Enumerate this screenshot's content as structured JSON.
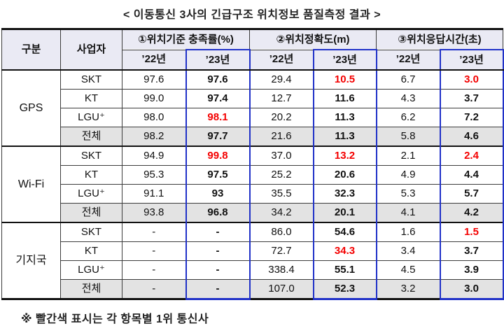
{
  "title": "< 이동통신 3사의 긴급구조 위치정보 품질측정 결과 >",
  "footnote": "※ 빨간색 표시는 각 항목별 1위 통신사",
  "colors": {
    "rank1_red": "#f40000",
    "year23_border_blue": "#2031c8",
    "header_bg": "#eaeaf4",
    "total_row_bg": "#e3e3e3"
  },
  "table": {
    "col_headers": {
      "category": "구분",
      "carrier": "사업자",
      "groups": [
        "①위치기준 충족률(%)",
        "②위치정확도(m)",
        "③위치응답시간(초)"
      ],
      "years": [
        "’22년",
        "’23년"
      ]
    },
    "groups": [
      {
        "name": "GPS",
        "rows": [
          {
            "carrier": "SKT",
            "total": false,
            "values": [
              "97.6",
              "97.6",
              "29.4",
              "10.5",
              "6.7",
              "3.0"
            ],
            "red": [
              3,
              5
            ]
          },
          {
            "carrier": "KT",
            "total": false,
            "values": [
              "99.0",
              "97.4",
              "12.7",
              "11.6",
              "4.3",
              "3.7"
            ],
            "red": []
          },
          {
            "carrier": "LGU⁺",
            "total": false,
            "values": [
              "98.0",
              "98.1",
              "20.2",
              "11.3",
              "6.2",
              "7.2"
            ],
            "red": [
              1
            ]
          },
          {
            "carrier": "전체",
            "total": true,
            "values": [
              "98.2",
              "97.7",
              "21.6",
              "11.3",
              "5.8",
              "4.6"
            ],
            "red": []
          }
        ]
      },
      {
        "name": "Wi-Fi",
        "rows": [
          {
            "carrier": "SKT",
            "total": false,
            "values": [
              "94.9",
              "99.8",
              "37.0",
              "13.2",
              "2.1",
              "2.4"
            ],
            "red": [
              1,
              3,
              5
            ]
          },
          {
            "carrier": "KT",
            "total": false,
            "values": [
              "95.3",
              "97.5",
              "25.2",
              "20.6",
              "4.9",
              "4.4"
            ],
            "red": []
          },
          {
            "carrier": "LGU⁺",
            "total": false,
            "values": [
              "91.1",
              "93",
              "35.5",
              "32.3",
              "5.3",
              "5.7"
            ],
            "red": []
          },
          {
            "carrier": "전체",
            "total": true,
            "values": [
              "93.8",
              "96.8",
              "34.2",
              "20.1",
              "4.1",
              "4.2"
            ],
            "red": []
          }
        ]
      },
      {
        "name": "기지국",
        "rows": [
          {
            "carrier": "SKT",
            "total": false,
            "values": [
              "-",
              "-",
              "86.0",
              "54.6",
              "1.6",
              "1.5"
            ],
            "red": [
              5
            ]
          },
          {
            "carrier": "KT",
            "total": false,
            "values": [
              "-",
              "-",
              "72.7",
              "34.3",
              "3.4",
              "3.7"
            ],
            "red": [
              3
            ]
          },
          {
            "carrier": "LGU⁺",
            "total": false,
            "values": [
              "-",
              "-",
              "338.4",
              "55.1",
              "4.5",
              "3.9"
            ],
            "red": []
          },
          {
            "carrier": "전체",
            "total": true,
            "values": [
              "-",
              "-",
              "107.0",
              "52.3",
              "3.2",
              "3.0"
            ],
            "red": []
          }
        ]
      }
    ]
  }
}
